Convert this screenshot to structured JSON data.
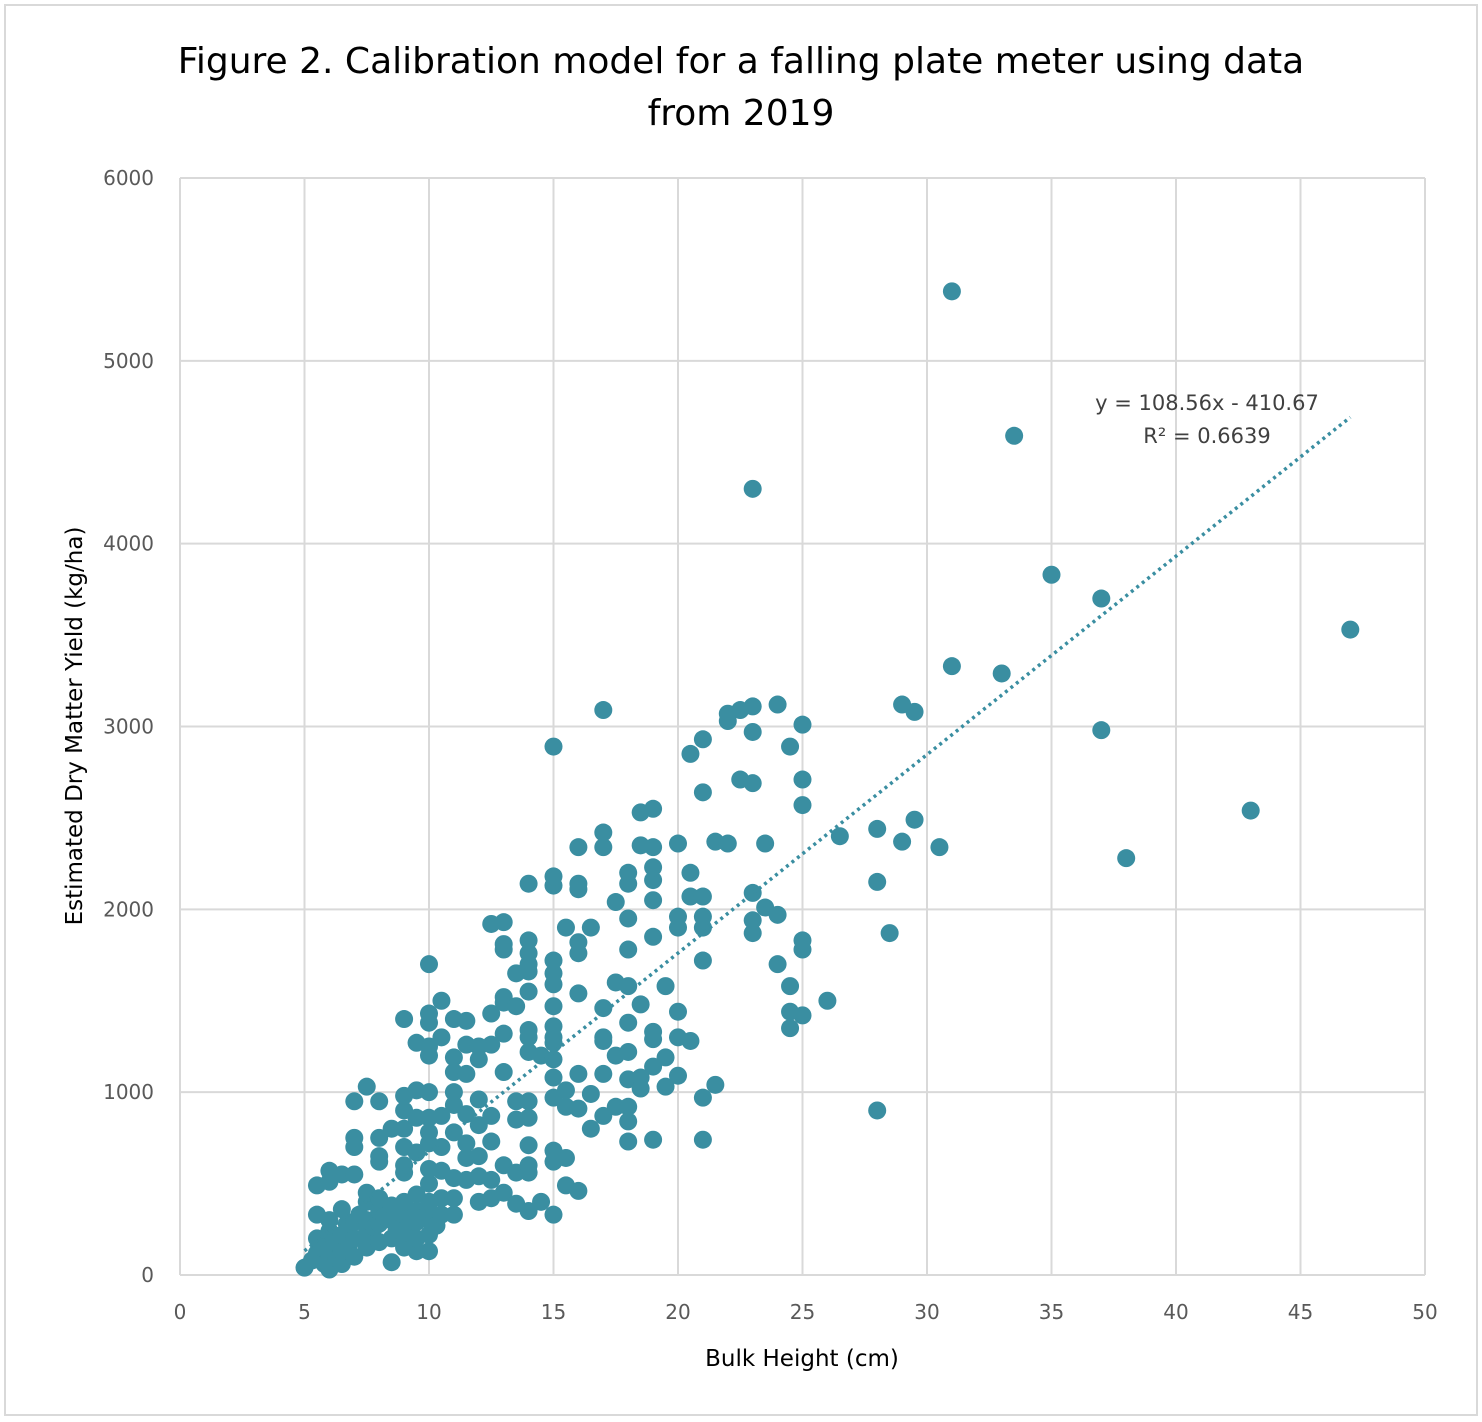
{
  "chart_data": {
    "type": "scatter",
    "title_line1": "Figure 2.  Calibration model for a falling plate meter using data",
    "title_line2": "from 2019",
    "xlabel": "Bulk Height (cm)",
    "ylabel": "Estimated Dry Matter Yield (kg/ha)",
    "xlim": [
      0,
      50
    ],
    "ylim": [
      0,
      6000
    ],
    "xticks": [
      0,
      5,
      10,
      15,
      20,
      25,
      30,
      35,
      40,
      45,
      50
    ],
    "yticks": [
      0,
      1000,
      2000,
      3000,
      4000,
      5000,
      6000
    ],
    "grid": true,
    "marker_color": "#3a8ea1",
    "trendline": {
      "type": "linear",
      "slope": 108.56,
      "intercept": -410.67,
      "x_range": [
        5,
        47
      ],
      "equation": "y = 108.56x - 410.67",
      "r_squared": "R² = 0.6639",
      "style": "dotted"
    },
    "points": [
      [
        5,
        40
      ],
      [
        5.3,
        80
      ],
      [
        5.5,
        120
      ],
      [
        5.5,
        200
      ],
      [
        5.5,
        330
      ],
      [
        5.5,
        490
      ],
      [
        5.7,
        150
      ],
      [
        5.8,
        60
      ],
      [
        6,
        30
      ],
      [
        6,
        100
      ],
      [
        6,
        160
      ],
      [
        6,
        240
      ],
      [
        6,
        300
      ],
      [
        6,
        510
      ],
      [
        6,
        570
      ],
      [
        6.2,
        180
      ],
      [
        6.3,
        90
      ],
      [
        6.5,
        60
      ],
      [
        6.5,
        130
      ],
      [
        6.5,
        220
      ],
      [
        6.5,
        360
      ],
      [
        6.5,
        550
      ],
      [
        6.7,
        280
      ],
      [
        6.8,
        170
      ],
      [
        7,
        100
      ],
      [
        7,
        200
      ],
      [
        7,
        290
      ],
      [
        7,
        550
      ],
      [
        7,
        700
      ],
      [
        7,
        750
      ],
      [
        7,
        950
      ],
      [
        7.2,
        330
      ],
      [
        7.5,
        150
      ],
      [
        7.5,
        230
      ],
      [
        7.5,
        300
      ],
      [
        7.5,
        400
      ],
      [
        7.5,
        450
      ],
      [
        7.5,
        1030
      ],
      [
        7.8,
        260
      ],
      [
        8,
        180
      ],
      [
        8,
        280
      ],
      [
        8,
        350
      ],
      [
        8,
        420
      ],
      [
        8,
        620
      ],
      [
        8,
        650
      ],
      [
        8,
        750
      ],
      [
        8,
        950
      ],
      [
        8.2,
        320
      ],
      [
        8.5,
        70
      ],
      [
        8.5,
        200
      ],
      [
        8.5,
        300
      ],
      [
        8.5,
        380
      ],
      [
        8.5,
        800
      ],
      [
        8.7,
        250
      ],
      [
        9,
        150
      ],
      [
        9,
        230
      ],
      [
        9,
        330
      ],
      [
        9,
        400
      ],
      [
        9,
        560
      ],
      [
        9,
        600
      ],
      [
        9,
        700
      ],
      [
        9,
        800
      ],
      [
        9,
        900
      ],
      [
        9,
        980
      ],
      [
        9,
        1400
      ],
      [
        9.2,
        270
      ],
      [
        9.5,
        130
      ],
      [
        9.5,
        200
      ],
      [
        9.5,
        290
      ],
      [
        9.5,
        350
      ],
      [
        9.5,
        440
      ],
      [
        9.5,
        670
      ],
      [
        9.5,
        860
      ],
      [
        9.5,
        1010
      ],
      [
        9.5,
        1270
      ],
      [
        9.7,
        310
      ],
      [
        10,
        130
      ],
      [
        10,
        220
      ],
      [
        10,
        300
      ],
      [
        10,
        360
      ],
      [
        10,
        400
      ],
      [
        10,
        500
      ],
      [
        10,
        580
      ],
      [
        10,
        720
      ],
      [
        10,
        780
      ],
      [
        10,
        860
      ],
      [
        10,
        1000
      ],
      [
        10,
        1200
      ],
      [
        10,
        1250
      ],
      [
        10,
        1380
      ],
      [
        10,
        1430
      ],
      [
        10,
        1700
      ],
      [
        10.3,
        270
      ],
      [
        10.5,
        330
      ],
      [
        10.5,
        420
      ],
      [
        10.5,
        570
      ],
      [
        10.5,
        700
      ],
      [
        10.5,
        870
      ],
      [
        10.5,
        1300
      ],
      [
        10.5,
        1500
      ],
      [
        11,
        330
      ],
      [
        11,
        420
      ],
      [
        11,
        530
      ],
      [
        11,
        780
      ],
      [
        11,
        930
      ],
      [
        11,
        1000
      ],
      [
        11,
        1110
      ],
      [
        11,
        1190
      ],
      [
        11,
        1400
      ],
      [
        11.5,
        520
      ],
      [
        11.5,
        640
      ],
      [
        11.5,
        720
      ],
      [
        11.5,
        880
      ],
      [
        11.5,
        1100
      ],
      [
        11.5,
        1260
      ],
      [
        11.5,
        1390
      ],
      [
        12,
        400
      ],
      [
        12,
        540
      ],
      [
        12,
        650
      ],
      [
        12,
        820
      ],
      [
        12,
        960
      ],
      [
        12,
        1180
      ],
      [
        12,
        1250
      ],
      [
        12.5,
        420
      ],
      [
        12.5,
        520
      ],
      [
        12.5,
        730
      ],
      [
        12.5,
        870
      ],
      [
        12.5,
        1260
      ],
      [
        12.5,
        1430
      ],
      [
        12.5,
        1920
      ],
      [
        13,
        450
      ],
      [
        13,
        600
      ],
      [
        13,
        1110
      ],
      [
        13,
        1320
      ],
      [
        13,
        1490
      ],
      [
        13,
        1520
      ],
      [
        13,
        1780
      ],
      [
        13,
        1810
      ],
      [
        13,
        1930
      ],
      [
        13.5,
        390
      ],
      [
        13.5,
        560
      ],
      [
        13.5,
        850
      ],
      [
        13.5,
        950
      ],
      [
        13.5,
        1470
      ],
      [
        13.5,
        1650
      ],
      [
        14,
        350
      ],
      [
        14,
        560
      ],
      [
        14,
        600
      ],
      [
        14,
        710
      ],
      [
        14,
        860
      ],
      [
        14,
        950
      ],
      [
        14,
        1220
      ],
      [
        14,
        1300
      ],
      [
        14,
        1340
      ],
      [
        14,
        1550
      ],
      [
        14,
        1660
      ],
      [
        14,
        1700
      ],
      [
        14,
        1760
      ],
      [
        14,
        1830
      ],
      [
        14,
        2140
      ],
      [
        14.5,
        400
      ],
      [
        14.5,
        1200
      ],
      [
        15,
        330
      ],
      [
        15,
        620
      ],
      [
        15,
        680
      ],
      [
        15,
        970
      ],
      [
        15,
        1080
      ],
      [
        15,
        1180
      ],
      [
        15,
        1270
      ],
      [
        15,
        1300
      ],
      [
        15,
        1360
      ],
      [
        15,
        1470
      ],
      [
        15,
        1590
      ],
      [
        15,
        1650
      ],
      [
        15,
        1720
      ],
      [
        15,
        2130
      ],
      [
        15,
        2180
      ],
      [
        15,
        2890
      ],
      [
        15.5,
        490
      ],
      [
        15.5,
        640
      ],
      [
        15.5,
        920
      ],
      [
        15.5,
        1010
      ],
      [
        15.5,
        1900
      ],
      [
        16,
        460
      ],
      [
        16,
        910
      ],
      [
        16,
        1100
      ],
      [
        16,
        1540
      ],
      [
        16,
        1760
      ],
      [
        16,
        1820
      ],
      [
        16,
        2110
      ],
      [
        16,
        2140
      ],
      [
        16,
        2340
      ],
      [
        16.5,
        800
      ],
      [
        16.5,
        990
      ],
      [
        16.5,
        1900
      ],
      [
        17,
        870
      ],
      [
        17,
        1100
      ],
      [
        17,
        1280
      ],
      [
        17,
        1300
      ],
      [
        17,
        1460
      ],
      [
        17,
        2340
      ],
      [
        17,
        2420
      ],
      [
        17,
        3090
      ],
      [
        17.5,
        920
      ],
      [
        17.5,
        1200
      ],
      [
        17.5,
        1600
      ],
      [
        17.5,
        2040
      ],
      [
        18,
        730
      ],
      [
        18,
        840
      ],
      [
        18,
        920
      ],
      [
        18,
        1070
      ],
      [
        18,
        1220
      ],
      [
        18,
        1380
      ],
      [
        18,
        1580
      ],
      [
        18,
        1780
      ],
      [
        18,
        1950
      ],
      [
        18,
        2140
      ],
      [
        18,
        2200
      ],
      [
        18.5,
        1020
      ],
      [
        18.5,
        1080
      ],
      [
        18.5,
        1480
      ],
      [
        18.5,
        2350
      ],
      [
        18.5,
        2530
      ],
      [
        19,
        740
      ],
      [
        19,
        1140
      ],
      [
        19,
        1290
      ],
      [
        19,
        1330
      ],
      [
        19,
        1850
      ],
      [
        19,
        2050
      ],
      [
        19,
        2160
      ],
      [
        19,
        2230
      ],
      [
        19,
        2340
      ],
      [
        19,
        2550
      ],
      [
        19.5,
        1030
      ],
      [
        19.5,
        1190
      ],
      [
        19.5,
        1580
      ],
      [
        20,
        1090
      ],
      [
        20,
        1300
      ],
      [
        20,
        1440
      ],
      [
        20,
        1900
      ],
      [
        20,
        1960
      ],
      [
        20,
        2360
      ],
      [
        20.5,
        1280
      ],
      [
        20.5,
        2070
      ],
      [
        20.5,
        2200
      ],
      [
        20.5,
        2850
      ],
      [
        21,
        740
      ],
      [
        21,
        970
      ],
      [
        21,
        1720
      ],
      [
        21,
        1900
      ],
      [
        21,
        1960
      ],
      [
        21,
        2070
      ],
      [
        21,
        2640
      ],
      [
        21,
        2930
      ],
      [
        21.5,
        1040
      ],
      [
        21.5,
        2370
      ],
      [
        22,
        2360
      ],
      [
        22,
        3030
      ],
      [
        22,
        3070
      ],
      [
        22.5,
        2710
      ],
      [
        22.5,
        3090
      ],
      [
        23,
        1870
      ],
      [
        23,
        1940
      ],
      [
        23,
        2090
      ],
      [
        23,
        2690
      ],
      [
        23,
        2970
      ],
      [
        23,
        3110
      ],
      [
        23,
        4300
      ],
      [
        23.5,
        2010
      ],
      [
        23.5,
        2360
      ],
      [
        24,
        1700
      ],
      [
        24,
        1970
      ],
      [
        24,
        3120
      ],
      [
        24.5,
        1350
      ],
      [
        24.5,
        1440
      ],
      [
        24.5,
        1580
      ],
      [
        24.5,
        2890
      ],
      [
        25,
        1420
      ],
      [
        25,
        1780
      ],
      [
        25,
        1830
      ],
      [
        25,
        2570
      ],
      [
        25,
        2710
      ],
      [
        25,
        3010
      ],
      [
        26,
        1500
      ],
      [
        26.5,
        2400
      ],
      [
        28,
        900
      ],
      [
        28,
        2150
      ],
      [
        28,
        2440
      ],
      [
        28.5,
        1870
      ],
      [
        29,
        2370
      ],
      [
        29,
        3120
      ],
      [
        29.5,
        2490
      ],
      [
        29.5,
        3080
      ],
      [
        30.5,
        2340
      ],
      [
        31,
        3330
      ],
      [
        31,
        5380
      ],
      [
        33,
        3290
      ],
      [
        33.5,
        4590
      ],
      [
        35,
        3830
      ],
      [
        37,
        2980
      ],
      [
        37,
        3700
      ],
      [
        38,
        2280
      ],
      [
        43,
        2540
      ],
      [
        47,
        3530
      ]
    ]
  }
}
